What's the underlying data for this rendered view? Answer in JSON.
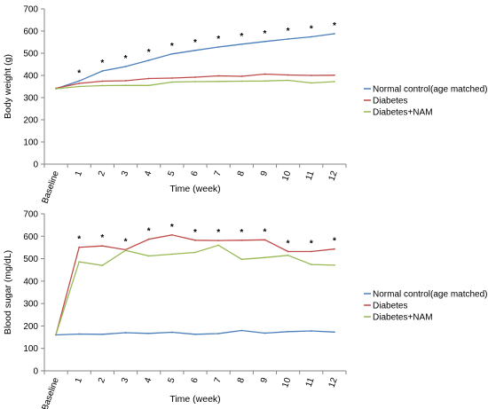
{
  "chart_data": [
    {
      "type": "line",
      "xlabel": "Time (week)",
      "ylabel": "Body weight (g)",
      "categories": [
        "Baseline",
        "1",
        "2",
        "3",
        "4",
        "5",
        "6",
        "7",
        "8",
        "9",
        "10",
        "11",
        "12"
      ],
      "ylim": [
        0,
        700
      ],
      "yticks": [
        0,
        100,
        200,
        300,
        400,
        500,
        600,
        700
      ],
      "grid": false,
      "legend_position": "right",
      "series": [
        {
          "name": "Normal control(age matched)",
          "color": "#4a7ebb",
          "values": [
            340,
            375,
            420,
            440,
            468,
            497,
            513,
            528,
            541,
            553,
            564,
            574,
            588
          ]
        },
        {
          "name": "Diabetes",
          "color": "#be4b48",
          "values": [
            342,
            364,
            374,
            376,
            386,
            388,
            392,
            398,
            396,
            406,
            402,
            400,
            401
          ]
        },
        {
          "name": "Diabetes+NAM",
          "color": "#98b954",
          "values": [
            340,
            350,
            354,
            355,
            355,
            370,
            372,
            373,
            374,
            375,
            378,
            366,
            372
          ]
        }
      ],
      "annotations": {
        "marker": "*",
        "points": [
          "1",
          "2",
          "3",
          "4",
          "5",
          "6",
          "7",
          "8",
          "9",
          "10",
          "11",
          "12"
        ]
      }
    },
    {
      "type": "line",
      "xlabel": "Time (week)",
      "ylabel": "Blood sugar (mg/dL)",
      "categories": [
        "Baseline",
        "1",
        "2",
        "3",
        "4",
        "5",
        "6",
        "7",
        "8",
        "9",
        "10",
        "11",
        "12"
      ],
      "ylim": [
        0,
        700
      ],
      "yticks": [
        0,
        100,
        200,
        300,
        400,
        500,
        600,
        700
      ],
      "grid": false,
      "legend_position": "right",
      "series": [
        {
          "name": "Normal control(age matched)",
          "color": "#4a7ebb",
          "values": [
            160,
            164,
            163,
            170,
            167,
            172,
            163,
            166,
            180,
            168,
            175,
            178,
            173
          ]
        },
        {
          "name": "Diabetes",
          "color": "#be4b48",
          "values": [
            162,
            551,
            557,
            540,
            587,
            606,
            582,
            581,
            582,
            584,
            532,
            532,
            543
          ]
        },
        {
          "name": "Diabetes+NAM",
          "color": "#98b954",
          "values": [
            163,
            486,
            470,
            537,
            512,
            520,
            528,
            560,
            497,
            505,
            515,
            474,
            471
          ]
        }
      ],
      "annotations": {
        "marker": "*",
        "points": [
          "1",
          "2",
          "3",
          "4",
          "5",
          "6",
          "7",
          "8",
          "9",
          "10",
          "11",
          "12"
        ]
      }
    }
  ]
}
